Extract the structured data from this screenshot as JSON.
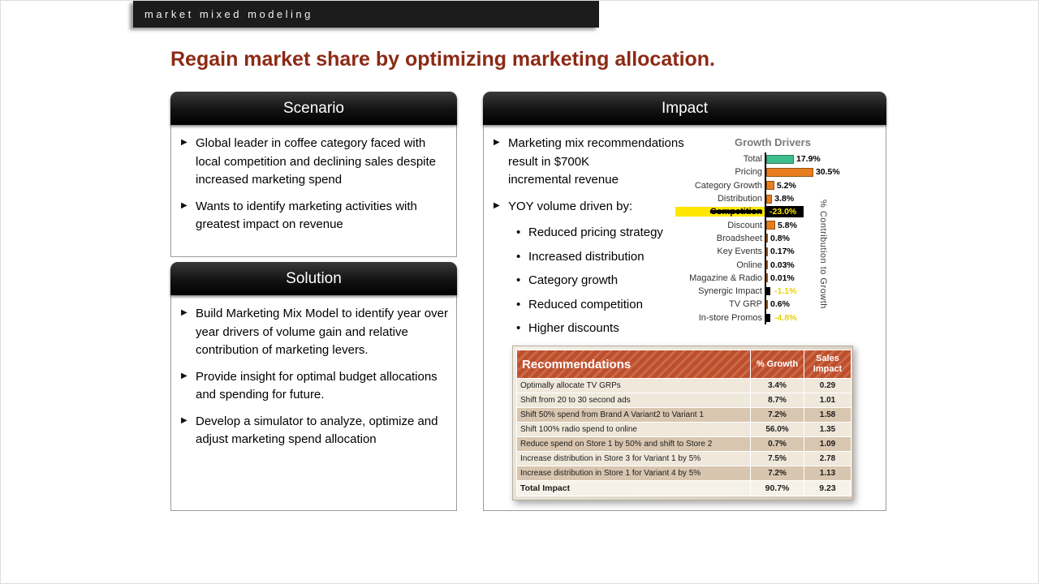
{
  "banner": {
    "title": "market mixed modeling"
  },
  "page_title": "Regain market share by optimizing marketing allocation.",
  "panels": {
    "scenario": {
      "title": "Scenario",
      "bullets": [
        "Global leader in coffee category faced with local competition and declining sales despite increased marketing spend",
        "Wants to identify marketing activities with greatest impact on revenue"
      ]
    },
    "solution": {
      "title": "Solution",
      "bullets": [
        "Build Marketing Mix Model to identify year over year drivers of volume gain and relative contribution of marketing levers.",
        "Provide insight for optimal budget allocations and spending for future.",
        "Develop a simulator to analyze, optimize and adjust marketing spend allocation"
      ]
    },
    "impact": {
      "title": "Impact",
      "bullet_recommendations": "Marketing mix recommendations\nresult in $700K\nincremental revenue",
      "bullet_yoy": "YOY volume driven by:",
      "yoy_items": [
        "Reduced pricing strategy",
        "Increased distribution",
        "Category growth",
        "Reduced competition",
        "Higher discounts"
      ]
    }
  },
  "chart_data": {
    "type": "bar",
    "orientation": "horizontal",
    "title": "Growth Drivers",
    "right_axis_label": "% Contribution to Growth",
    "categories": [
      "Total",
      "Pricing",
      "Category Growth",
      "Distribution",
      "Competition",
      "Discount",
      "Broadsheet",
      "Key Events",
      "Online",
      "Magazine & Radio",
      "Synergic Impact",
      "TV GRP",
      "In-store Promos"
    ],
    "values": [
      17.9,
      30.5,
      5.2,
      3.8,
      -23.0,
      5.8,
      0.8,
      0.17,
      0.03,
      0.01,
      -1.1,
      0.6,
      -4.8
    ],
    "value_labels": [
      "17.9%",
      "30.5%",
      "5.2%",
      "3.8%",
      "-23.0%",
      "5.8%",
      "0.8%",
      "0.17%",
      "0.03%",
      "0.01%",
      "-1.1%",
      "0.6%",
      "-4.8%"
    ],
    "styles": [
      "green",
      "orange",
      "orange",
      "orange",
      "redacted",
      "orange",
      "orange",
      "orange",
      "orange",
      "orange",
      "negative",
      "orange",
      "negative"
    ],
    "colors": {
      "positive_bar": "#e87d1e",
      "total_bar": "#3ebd8c",
      "negative_text": "#e8d400",
      "redaction": "#000000",
      "highlight": "#ffe600"
    }
  },
  "table": {
    "headers": [
      "Recommendations",
      "% Growth",
      "Sales Impact"
    ],
    "rows": [
      [
        "Optimally allocate TV GRPs",
        "3.4%",
        "0.29"
      ],
      [
        "Shift from 20 to 30 second ads",
        "8.7%",
        "1.01"
      ],
      [
        "Shift 50% spend from Brand A Variant2 to Variant 1",
        "7.2%",
        "1.58"
      ],
      [
        "Shift 100% radio spend to online",
        "56.0%",
        "1.35"
      ],
      [
        "Reduce spend on Store 1 by 50% and shift to Store 2",
        "0.7%",
        "1.09"
      ],
      [
        "Increase distribution in Store 3 for Variant 1 by 5%",
        "7.5%",
        "2.78"
      ],
      [
        "Increase distribution in Store 1 for Variant 4 by 5%",
        "7.2%",
        "1.13"
      ]
    ],
    "total_row": [
      "Total Impact",
      "90.7%",
      "9.23"
    ]
  }
}
